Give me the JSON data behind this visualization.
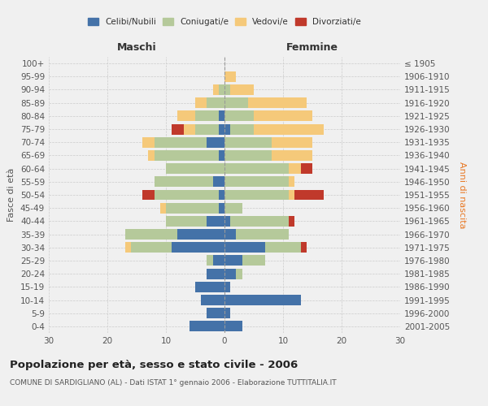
{
  "age_groups": [
    "0-4",
    "5-9",
    "10-14",
    "15-19",
    "20-24",
    "25-29",
    "30-34",
    "35-39",
    "40-44",
    "45-49",
    "50-54",
    "55-59",
    "60-64",
    "65-69",
    "70-74",
    "75-79",
    "80-84",
    "85-89",
    "90-94",
    "95-99",
    "100+"
  ],
  "birth_years": [
    "2001-2005",
    "1996-2000",
    "1991-1995",
    "1986-1990",
    "1981-1985",
    "1976-1980",
    "1971-1975",
    "1966-1970",
    "1961-1965",
    "1956-1960",
    "1951-1955",
    "1946-1950",
    "1941-1945",
    "1936-1940",
    "1931-1935",
    "1926-1930",
    "1921-1925",
    "1916-1920",
    "1911-1915",
    "1906-1910",
    "≤ 1905"
  ],
  "male": {
    "celibe": [
      6,
      3,
      4,
      5,
      3,
      2,
      9,
      8,
      3,
      1,
      1,
      2,
      0,
      1,
      3,
      1,
      1,
      0,
      0,
      0,
      0
    ],
    "coniugato": [
      0,
      0,
      0,
      0,
      0,
      1,
      7,
      9,
      7,
      9,
      11,
      10,
      10,
      11,
      9,
      4,
      4,
      3,
      1,
      0,
      0
    ],
    "vedovo": [
      0,
      0,
      0,
      0,
      0,
      0,
      1,
      0,
      0,
      1,
      0,
      0,
      0,
      1,
      2,
      2,
      3,
      2,
      1,
      0,
      0
    ],
    "divorziato": [
      0,
      0,
      0,
      0,
      0,
      0,
      0,
      0,
      0,
      0,
      2,
      0,
      0,
      0,
      0,
      2,
      0,
      0,
      0,
      0,
      0
    ]
  },
  "female": {
    "nubile": [
      3,
      1,
      13,
      1,
      2,
      3,
      7,
      2,
      1,
      0,
      0,
      0,
      0,
      0,
      0,
      1,
      0,
      0,
      0,
      0,
      0
    ],
    "coniugata": [
      0,
      0,
      0,
      0,
      1,
      4,
      6,
      9,
      10,
      3,
      11,
      11,
      11,
      8,
      8,
      4,
      5,
      4,
      1,
      0,
      0
    ],
    "vedova": [
      0,
      0,
      0,
      0,
      0,
      0,
      0,
      0,
      0,
      0,
      1,
      1,
      2,
      7,
      7,
      12,
      10,
      10,
      4,
      2,
      0
    ],
    "divorziata": [
      0,
      0,
      0,
      0,
      0,
      0,
      1,
      0,
      1,
      0,
      5,
      0,
      2,
      0,
      0,
      0,
      0,
      0,
      0,
      0,
      0
    ]
  },
  "colors": {
    "celibe": "#4472a8",
    "coniugato": "#b5c99a",
    "vedovo": "#f5c97a",
    "divorziato": "#c0392b"
  },
  "xlim": 30,
  "title": "Popolazione per età, sesso e stato civile - 2006",
  "subtitle": "COMUNE DI SARDIGLIANO (AL) - Dati ISTAT 1° gennaio 2006 - Elaborazione TUTTITALIA.IT",
  "ylabel_left": "Fasce di età",
  "ylabel_right": "Anni di nascita",
  "xlabel_left": "Maschi",
  "xlabel_right": "Femmine",
  "legend_labels": [
    "Celibi/Nubili",
    "Coniugati/e",
    "Vedovi/e",
    "Divorziati/e"
  ],
  "bg_color": "#f0f0f0",
  "plot_bg": "#f0f0f0"
}
